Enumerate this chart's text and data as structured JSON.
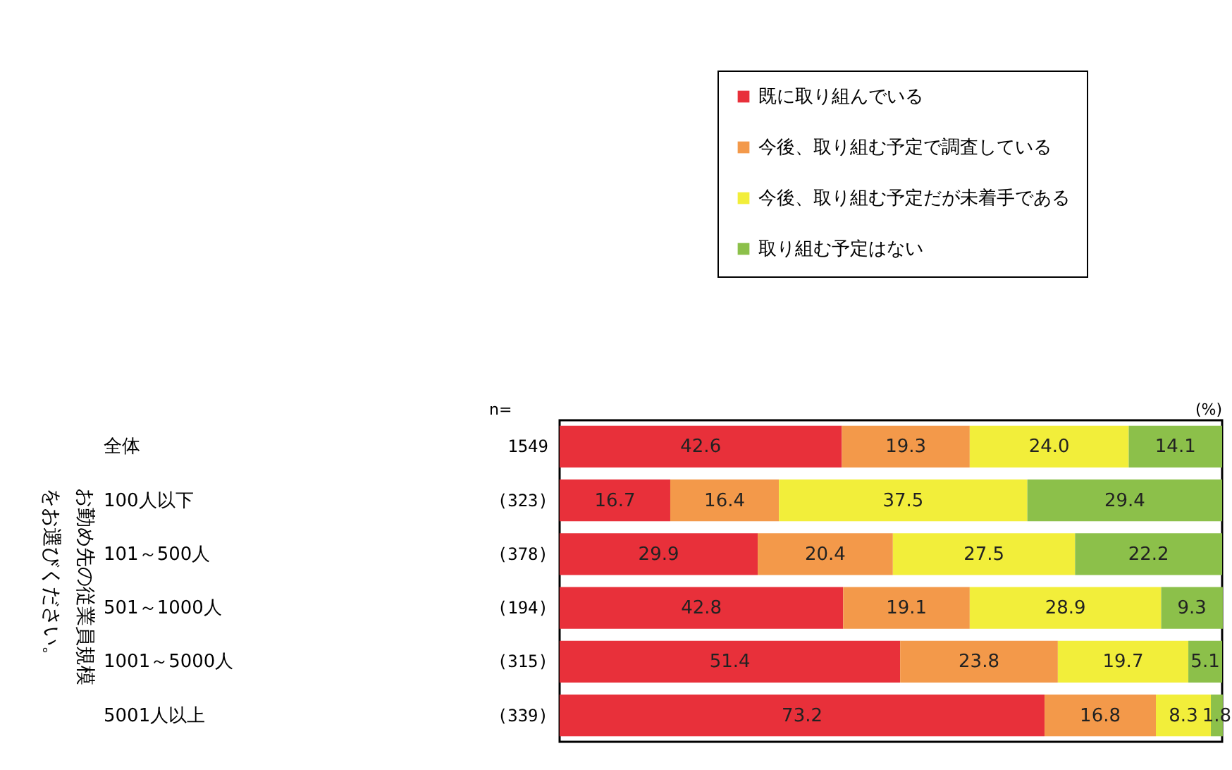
{
  "chart_data": {
    "type": "bar",
    "orientation": "horizontal",
    "stacked": true,
    "tick_labels": "y",
    "legend": "top right",
    "categories": [
      "全体",
      "100人以下",
      "101～500人",
      "501～1000人",
      "1001～5000人",
      "5001人以上"
    ],
    "xlim": [
      0,
      100
    ],
    "series": [
      {
        "name": "既に取り組んでいる",
        "color": "#e8303a",
        "values": [
          42.6,
          16.7,
          29.9,
          42.8,
          51.4,
          73.2
        ],
        "value_labels": [
          "42.6",
          "16.7",
          "29.9",
          "42.8",
          "51.4",
          "73.2"
        ]
      },
      {
        "name": "今後、取り組む予定で調査している",
        "color": "#f3994a",
        "values": [
          19.3,
          16.4,
          20.4,
          19.1,
          23.8,
          16.8
        ],
        "value_labels": [
          "19.3",
          "16.4",
          "20.4",
          "19.1",
          "23.8",
          "16.8"
        ]
      },
      {
        "name": "今後、取り組む予定だが未着手である",
        "color": "#f2ee3a",
        "values": [
          24.0,
          37.5,
          27.5,
          28.9,
          19.7,
          8.3
        ],
        "value_labels": [
          "24.0",
          "37.5",
          "27.5",
          "28.9",
          "19.7",
          "8.3"
        ]
      },
      {
        "name": "取り組む予定はない",
        "color": "#8cc04a",
        "values": [
          14.1,
          29.4,
          22.2,
          9.3,
          5.1,
          1.8
        ],
        "value_labels": [
          "14.1",
          "29.4",
          "22.2",
          "9.3",
          "5.1",
          "1.8"
        ]
      }
    ],
    "annotations": [
      "n=",
      "1549",
      "(323)",
      "(378)",
      "(194)",
      "(315)",
      "(339)",
      "(%)",
      "お勤め先の従業員規模をお選びください。"
    ]
  }
}
